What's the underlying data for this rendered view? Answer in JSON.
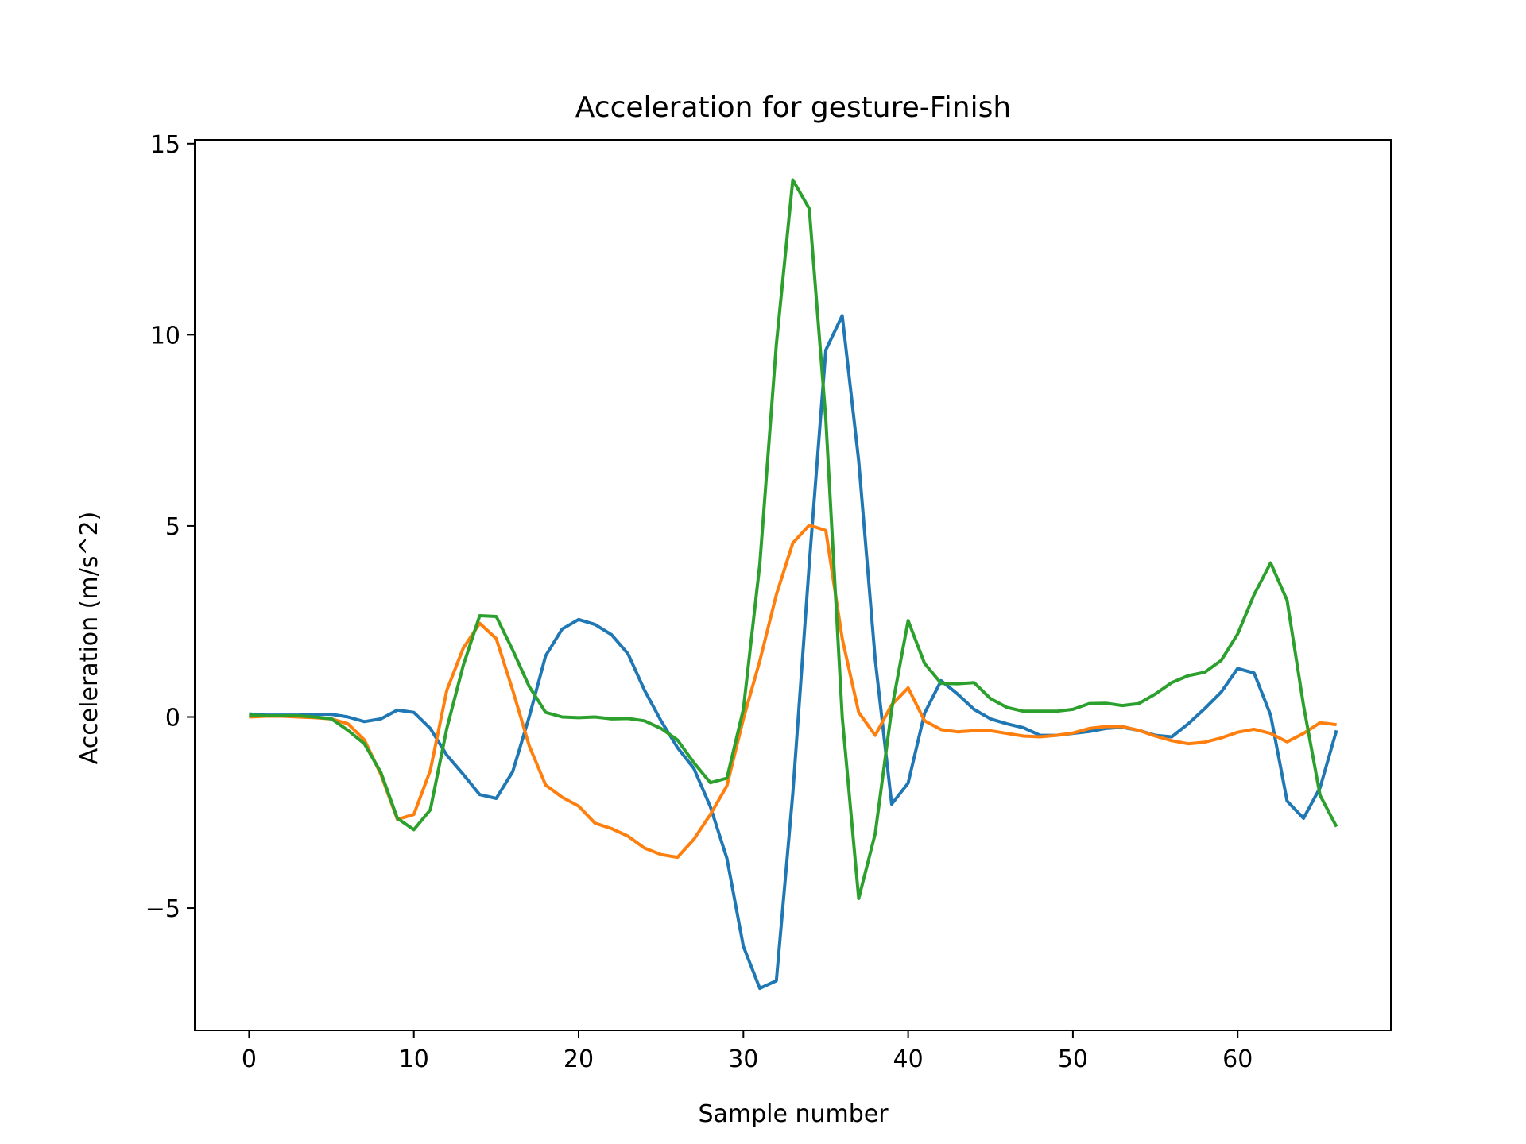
{
  "chart_data": {
    "type": "line",
    "title": "Acceleration for gesture-Finish",
    "xlabel": "Sample number",
    "ylabel": "Acceleration (m/s^2)",
    "xlim": [
      -3.3,
      69.3
    ],
    "ylim": [
      -8.2,
      15.1
    ],
    "xticks": [
      0,
      10,
      20,
      30,
      40,
      50,
      60
    ],
    "yticks": [
      -5,
      0,
      5,
      10,
      15
    ],
    "ytick_labels": [
      "−5",
      "0",
      "5",
      "10",
      "15"
    ],
    "grid": false,
    "legend": "none",
    "x": [
      0,
      1,
      2,
      3,
      4,
      5,
      6,
      7,
      8,
      9,
      10,
      11,
      12,
      13,
      14,
      15,
      16,
      17,
      18,
      19,
      20,
      21,
      22,
      23,
      24,
      25,
      26,
      27,
      28,
      29,
      30,
      31,
      32,
      33,
      34,
      35,
      36,
      37,
      38,
      39,
      40,
      41,
      42,
      43,
      44,
      45,
      46,
      47,
      48,
      49,
      50,
      51,
      52,
      53,
      54,
      55,
      56,
      57,
      58,
      59,
      60,
      61,
      62,
      63,
      64,
      65,
      66
    ],
    "series": [
      {
        "color": "#1f77b4",
        "values": [
          0.08,
          0.05,
          0.05,
          0.05,
          0.07,
          0.07,
          0.0,
          -0.12,
          -0.05,
          0.18,
          0.12,
          -0.3,
          -1.0,
          -1.5,
          -2.03,
          -2.13,
          -1.43,
          0.0,
          1.6,
          2.3,
          2.55,
          2.42,
          2.15,
          1.65,
          0.7,
          -0.1,
          -0.8,
          -1.35,
          -2.35,
          -3.7,
          -6.0,
          -7.1,
          -6.9,
          -2.0,
          4.0,
          9.6,
          10.5,
          6.7,
          1.5,
          -2.28,
          -1.73,
          0.1,
          0.95,
          0.6,
          0.2,
          -0.05,
          -0.18,
          -0.28,
          -0.48,
          -0.48,
          -0.43,
          -0.38,
          -0.3,
          -0.27,
          -0.35,
          -0.48,
          -0.52,
          -0.18,
          0.22,
          0.65,
          1.27,
          1.15,
          0.05,
          -2.2,
          -2.65,
          -1.85,
          -0.35
        ]
      },
      {
        "color": "#ff7f0e",
        "values": [
          0.0,
          0.02,
          0.02,
          0.0,
          -0.02,
          -0.05,
          -0.18,
          -0.6,
          -1.5,
          -2.68,
          -2.55,
          -1.4,
          0.7,
          1.8,
          2.45,
          2.05,
          0.7,
          -0.75,
          -1.78,
          -2.1,
          -2.33,
          -2.78,
          -2.92,
          -3.12,
          -3.43,
          -3.6,
          -3.67,
          -3.2,
          -2.55,
          -1.8,
          -0.05,
          1.47,
          3.2,
          4.55,
          5.02,
          4.88,
          2.05,
          0.12,
          -0.48,
          0.32,
          0.76,
          -0.1,
          -0.33,
          -0.39,
          -0.36,
          -0.36,
          -0.43,
          -0.5,
          -0.52,
          -0.48,
          -0.42,
          -0.3,
          -0.25,
          -0.25,
          -0.35,
          -0.5,
          -0.62,
          -0.7,
          -0.66,
          -0.55,
          -0.4,
          -0.32,
          -0.43,
          -0.65,
          -0.43,
          -0.15,
          -0.2
        ]
      },
      {
        "color": "#2ca02c",
        "values": [
          0.05,
          0.03,
          0.03,
          0.03,
          0.0,
          -0.05,
          -0.35,
          -0.7,
          -1.45,
          -2.65,
          -2.95,
          -2.43,
          -0.3,
          1.35,
          2.65,
          2.63,
          1.75,
          0.8,
          0.12,
          0.0,
          -0.02,
          0.0,
          -0.05,
          -0.04,
          -0.1,
          -0.3,
          -0.6,
          -1.2,
          -1.72,
          -1.6,
          0.2,
          4.0,
          9.75,
          14.05,
          13.3,
          7.8,
          0.0,
          -4.75,
          -3.05,
          0.2,
          2.52,
          1.4,
          0.88,
          0.87,
          0.9,
          0.48,
          0.25,
          0.15,
          0.15,
          0.15,
          0.2,
          0.35,
          0.36,
          0.3,
          0.35,
          0.6,
          0.9,
          1.08,
          1.17,
          1.48,
          2.17,
          3.2,
          4.03,
          3.05,
          0.3,
          -2.05,
          -2.87
        ]
      }
    ]
  }
}
